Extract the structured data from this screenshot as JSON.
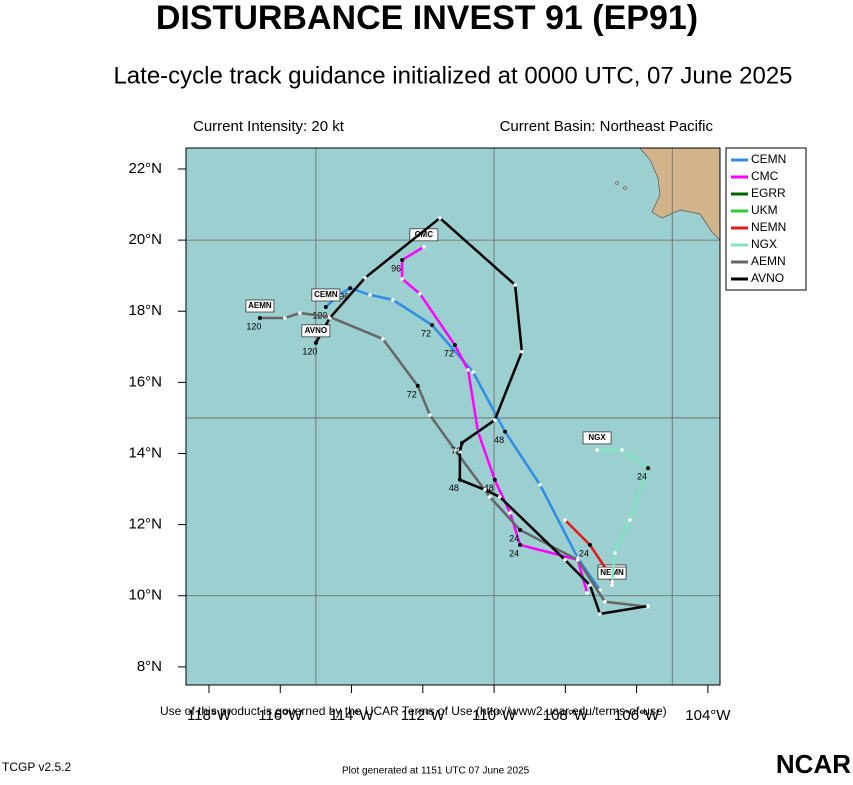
{
  "chart_data": {
    "type": "track",
    "title": "DISTURBANCE INVEST 91 (EP91)",
    "subtitle": "Late-cycle track guidance initialized at 0000 UTC, 07 June 2025",
    "info_left": "Current Intensity: 20 kt",
    "info_right": "Current Basin: Northeast Pacific",
    "footer": "Use of this product is governed by the UCAR Terms of Use (http://www2.ucar.edu/terms-of-use)",
    "version": "TCGP v2.5.2",
    "generated": "Plot generated at 1151 UTC   07 June 2025",
    "logo": "NCAR",
    "xlim": [
      -118.645,
      -103.66
    ],
    "ylim": [
      7.49,
      22.59
    ],
    "xticks": [
      {
        "value": -118,
        "label": "118°W"
      },
      {
        "value": -116,
        "label": "116°W"
      },
      {
        "value": -114,
        "label": "114°W"
      },
      {
        "value": -112,
        "label": "112°W"
      },
      {
        "value": -110,
        "label": "110°W"
      },
      {
        "value": -108,
        "label": "108°W"
      },
      {
        "value": -106,
        "label": "106°W"
      },
      {
        "value": -104,
        "label": "104°W"
      }
    ],
    "yticks": [
      {
        "value": 8,
        "label": "8°N"
      },
      {
        "value": 10,
        "label": "10°N"
      },
      {
        "value": 12,
        "label": "12°N"
      },
      {
        "value": 14,
        "label": "14°N"
      },
      {
        "value": 16,
        "label": "16°N"
      },
      {
        "value": 18,
        "label": "18°N"
      },
      {
        "value": 20,
        "label": "20°N"
      },
      {
        "value": 22,
        "label": "22°N"
      }
    ],
    "xgrid": [
      -115,
      -110,
      -105
    ],
    "ygrid": [
      10,
      15,
      20
    ],
    "series": [
      {
        "name": "CEMN",
        "color": "#2f8de4",
        "x": [
          -107.03,
          -107.65,
          -108.71,
          -109.69,
          -110.59,
          -111.74,
          -112.84,
          -113.48,
          -114.04,
          -114.35,
          -114.72
        ],
        "values": [
          10.16,
          11.06,
          13.12,
          14.61,
          16.29,
          17.61,
          18.32,
          18.46,
          18.65,
          18.46,
          18.12
        ],
        "hour_labels": [
          null,
          null,
          null,
          "48",
          null,
          "72",
          null,
          null,
          "96",
          null,
          "120"
        ]
      },
      {
        "name": "CMC",
        "color": "#ff00ff",
        "x": [
          -107.39,
          -107.65,
          -109.27,
          -109.55,
          -109.98,
          -110.45,
          -110.73,
          -111.1,
          -112.08,
          -112.58,
          -112.58,
          -111.97
        ],
        "values": [
          10.08,
          11.01,
          11.43,
          12.33,
          13.26,
          14.61,
          16.35,
          17.05,
          18.49,
          18.91,
          19.44,
          19.81
        ],
        "hour_labels": [
          null,
          null,
          "24",
          null,
          "48",
          null,
          null,
          "72",
          null,
          null,
          "96",
          null
        ]
      },
      {
        "name": "EGRR",
        "color": "#006400",
        "x": [],
        "values": [],
        "hour_labels": []
      },
      {
        "name": "UKM",
        "color": "#33cc33",
        "x": [
          -106.69
        ],
        "values": [
          10.36
        ],
        "hour_labels": [
          null
        ]
      },
      {
        "name": "NEMN",
        "color": "#e31a1c",
        "x": [
          -108.01,
          -107.31,
          -106.75,
          -106.69
        ],
        "values": [
          12.13,
          11.43,
          10.59,
          10.3
        ],
        "hour_labels": [
          null,
          "24",
          null,
          null
        ]
      },
      {
        "name": "NGX",
        "color": "#7fe5c0",
        "x": [
          -106.69,
          -106.61,
          -106.19,
          -105.68,
          -106.41,
          -107.11
        ],
        "values": [
          10.39,
          11.2,
          12.13,
          13.59,
          14.1,
          14.1
        ],
        "hour_labels": [
          null,
          null,
          null,
          "24",
          null,
          null
        ]
      },
      {
        "name": "AEMN",
        "color": "#666666",
        "x": [
          -105.68,
          -106.89,
          -107.65,
          -109.27,
          -110.12,
          -111.1,
          -111.8,
          -112.14,
          -113.12,
          -114.61,
          -115.45,
          -115.87,
          -116.57
        ],
        "values": [
          9.69,
          9.83,
          11.01,
          11.85,
          12.78,
          14.1,
          15.08,
          15.9,
          17.22,
          17.84,
          17.95,
          17.81,
          17.81
        ],
        "hour_labels": [
          null,
          null,
          null,
          "24",
          null,
          null,
          null,
          "72",
          null,
          null,
          null,
          null,
          "120"
        ]
      },
      {
        "name": "AVNO",
        "color": "#000000",
        "x": [
          -105.68,
          -107.03,
          -107.31,
          -108.01,
          -109.84,
          -110.26,
          -110.96,
          -110.96,
          -110.9,
          -109.98,
          -109.22,
          -109.41,
          -111.52,
          -113.62,
          -114.61,
          -115.0
        ],
        "values": [
          9.71,
          9.49,
          10.3,
          11.01,
          12.78,
          12.98,
          13.26,
          14.04,
          14.3,
          14.94,
          16.86,
          18.74,
          20.62,
          18.94,
          17.81,
          17.11
        ],
        "hour_labels": [
          null,
          null,
          null,
          null,
          null,
          null,
          "48",
          null,
          "72",
          null,
          null,
          null,
          null,
          null,
          null,
          "120"
        ]
      }
    ]
  }
}
